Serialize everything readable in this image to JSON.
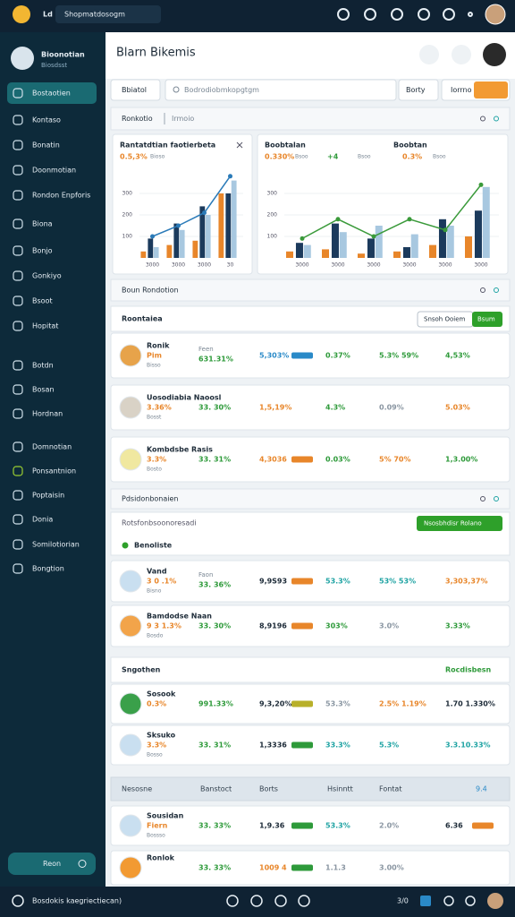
{
  "topbar": {
    "logo": "Ld",
    "title": "Shopmatdosogm"
  },
  "sidebar": {
    "user_name": "Bioonotian",
    "user_role": "Biosdsst",
    "items": [
      "Bostaotien",
      "Kontaso",
      "Bonatin",
      "Doonmotian",
      "Rondon Enpforis",
      "Biona",
      "Bonjo",
      "Gonkiyo",
      "Bsoot",
      "Hopitat",
      "Botdn",
      "Bosan",
      "Hordnan",
      "Domnotian",
      "Ponsantnion",
      "Poptaisin",
      "Donia",
      "Somilotiorian",
      "Bongtion"
    ],
    "button": "Reon"
  },
  "header": {
    "title": "Blarn Bikemis"
  },
  "search": {
    "tab": "Bbiatol",
    "placeholder": "Bodrodiobmkopgtgm",
    "button": "Borty",
    "filter": "Iorrno"
  },
  "overview": {
    "title": "Ronkotio",
    "subtitle": "Irmoio"
  },
  "charts": [
    {
      "type": "bar",
      "title": "Rantatdtian faotierbeta",
      "stats": [
        {
          "text": "0.5,3%",
          "color": "#e8862a"
        },
        {
          "text": "Bioso",
          "color": "#7a8794"
        }
      ],
      "ylim": [
        0,
        400
      ],
      "yticks": [
        100,
        200,
        300
      ],
      "categories": [
        "3000",
        "3000",
        "3000",
        "30"
      ],
      "series": [
        {
          "color": "#1b3a5c",
          "values": [
            90,
            160,
            240,
            300
          ]
        },
        {
          "color": "#a8c8e0",
          "values": [
            50,
            130,
            200,
            360
          ]
        },
        {
          "color": "#e8862a",
          "values": [
            30,
            60,
            80,
            300
          ]
        }
      ],
      "line": {
        "color": "#2a7ab8",
        "values": [
          100,
          150,
          210,
          380
        ]
      }
    },
    {
      "type": "bar",
      "title": "Boobtalan",
      "title2": "Boobtan",
      "stats": [
        {
          "text": "0.330%",
          "color": "#e8862a"
        },
        {
          "text": "Bsoo",
          "color": "#7a8794"
        },
        {
          "text": "+4",
          "color": "#2e9a3a"
        },
        {
          "text": "Bsoo",
          "color": "#7a8794"
        },
        {
          "text": "0.3%",
          "color": "#e8862a"
        },
        {
          "text": "Bsoo",
          "color": "#7a8794"
        }
      ],
      "ylim": [
        0,
        400
      ],
      "yticks": [
        100,
        200,
        300
      ],
      "categories": [
        "3000",
        "3000",
        "3000",
        "3000",
        "3000",
        "3000"
      ],
      "series": [
        {
          "color": "#1b3a5c",
          "values": [
            70,
            160,
            90,
            50,
            180,
            220
          ]
        },
        {
          "color": "#a8c8e0",
          "values": [
            60,
            120,
            150,
            110,
            150,
            330
          ]
        },
        {
          "color": "#e8862a",
          "values": [
            30,
            40,
            20,
            30,
            60,
            100
          ]
        }
      ],
      "line": {
        "color": "#3a9a3a",
        "values": [
          90,
          180,
          100,
          180,
          130,
          340
        ]
      }
    }
  ],
  "section": {
    "title": "Boun Rondotion"
  },
  "list1": {
    "title": "Roontaiea",
    "action": "Snsoh Ooiem",
    "primary": "Bsum",
    "rows": [
      {
        "name": "Ronik",
        "tag": "Pim",
        "note": "Bisso",
        "label": "Feen",
        "amount": "631.31%",
        "cells": [
          {
            "text": "5,303%",
            "color": "#2a8ac8",
            "badge": "#2a8ac8"
          },
          {
            "text": "0.37%",
            "color": "#2e9a3a"
          },
          {
            "text": "5.3% 59%",
            "color": "#2e9a3a"
          },
          {
            "text": "4,53%",
            "color": "#2e9a3a"
          }
        ]
      },
      {
        "name": "Uosodiabia Naoosl",
        "tag": "3.36%",
        "note": "Bosst",
        "label": "",
        "amount": "33. 30%",
        "cells": [
          {
            "text": "1,5,19%",
            "color": "#e8862a"
          },
          {
            "text": "4.3%",
            "color": "#2e9a3a"
          },
          {
            "text": "0.09%",
            "color": "#8a96a2"
          },
          {
            "text": "5.03%",
            "color": "#e8862a"
          }
        ]
      },
      {
        "name": "Kombdsbe Rasis",
        "tag": "3.3%",
        "note": "Bosto",
        "label": "",
        "amount": "33. 31%",
        "cells": [
          {
            "text": "4,3036",
            "color": "#e8862a",
            "badge": "#e8862a"
          },
          {
            "text": "0.03%",
            "color": "#2e9a3a"
          },
          {
            "text": "5% 70%",
            "color": "#e8862a"
          },
          {
            "text": "1,3.00%",
            "color": "#2e9a3a"
          }
        ]
      }
    ]
  },
  "list2": {
    "section": "Pdsidonbonaien",
    "title": "Rotsfonbsoonoresadi",
    "action": "Nsosbhdisr Rolano",
    "filter": "Benoliste",
    "rows": [
      {
        "name": "Vand",
        "tag": "3 0 .1%",
        "note": "Bisno",
        "label": "Faon",
        "amount": "33. 36%",
        "cells": [
          {
            "text": "9,9S93",
            "color": "#1d2b38",
            "badge": "#e8862a"
          },
          {
            "text": "53.3%",
            "color": "#1fa3a3"
          },
          {
            "text": "53% 53%",
            "color": "#1fa3a3"
          },
          {
            "text": "3,303,37%",
            "color": "#e8862a"
          }
        ]
      },
      {
        "name": "Bamdodse Naan",
        "tag": "9 3 1.3%",
        "note": "Bosdo",
        "label": "",
        "amount": "33. 30%",
        "cells": [
          {
            "text": "8,9196",
            "color": "#1d2b38",
            "badge": "#e8862a"
          },
          {
            "text": "303%",
            "color": "#2e9a3a"
          },
          {
            "text": "3.0%",
            "color": "#8a96a2"
          },
          {
            "text": "3.33%",
            "color": "#2e9a3a"
          }
        ]
      }
    ]
  },
  "list3": {
    "title": "Sngothen",
    "link": "Rocdisbesn",
    "rows": [
      {
        "name": "Sosook",
        "tag": "0.3%",
        "note": "",
        "label": "",
        "amount": "991.33%",
        "cells": [
          {
            "text": "9,3,20%",
            "color": "#1d2b38",
            "badge": "#b8b02a"
          },
          {
            "text": "53.3%",
            "color": "#8a96a2"
          },
          {
            "text": "2.5% 1.19%",
            "color": "#e8862a"
          },
          {
            "text": "1.70 1.330%",
            "color": "#1d2b38"
          }
        ]
      },
      {
        "name": "Sksuko",
        "tag": "3.3%",
        "note": "Bosso",
        "label": "",
        "amount": "33. 31%",
        "cells": [
          {
            "text": "1,3336",
            "color": "#1d2b38",
            "badge": "#2e9a3a"
          },
          {
            "text": "33.3%",
            "color": "#1fa3a3"
          },
          {
            "text": "5.3%",
            "color": "#1fa3a3"
          },
          {
            "text": "3.3.10.33%",
            "color": "#1fa3a3"
          }
        ]
      }
    ]
  },
  "table": {
    "columns": [
      "Nesosne",
      "Banstoct",
      "Borts",
      "Hsinntt",
      "Fontat",
      "9.4"
    ],
    "rows": [
      {
        "name": "Sousidan",
        "tag": "Fiern",
        "note": "Bossso",
        "label": "",
        "amount": "33. 33%",
        "cells": [
          {
            "text": "1,9.36",
            "color": "#1d2b38",
            "badge": "#2e9a3a"
          },
          {
            "text": "53.3%",
            "color": "#1fa3a3"
          },
          {
            "text": "2.0%",
            "color": "#8a96a2"
          },
          {
            "text": "6.36",
            "color": "#1d2b38",
            "badge": "#e8862a"
          }
        ]
      },
      {
        "name": "Ronlok",
        "tag": "",
        "note": "",
        "label": "",
        "amount": "33. 33%",
        "cells": [
          {
            "text": "1009 4",
            "color": "#e8862a",
            "badge": "#2e9a3a"
          },
          {
            "text": "1.1.3",
            "color": "#8a96a2"
          },
          {
            "text": "3.00%",
            "color": "#8a96a2"
          },
          {
            "text": "",
            "color": "#8a96a2"
          }
        ]
      }
    ]
  },
  "footer": {
    "status": "Bosdokis kaegriectiecan)",
    "count": "3/0"
  }
}
